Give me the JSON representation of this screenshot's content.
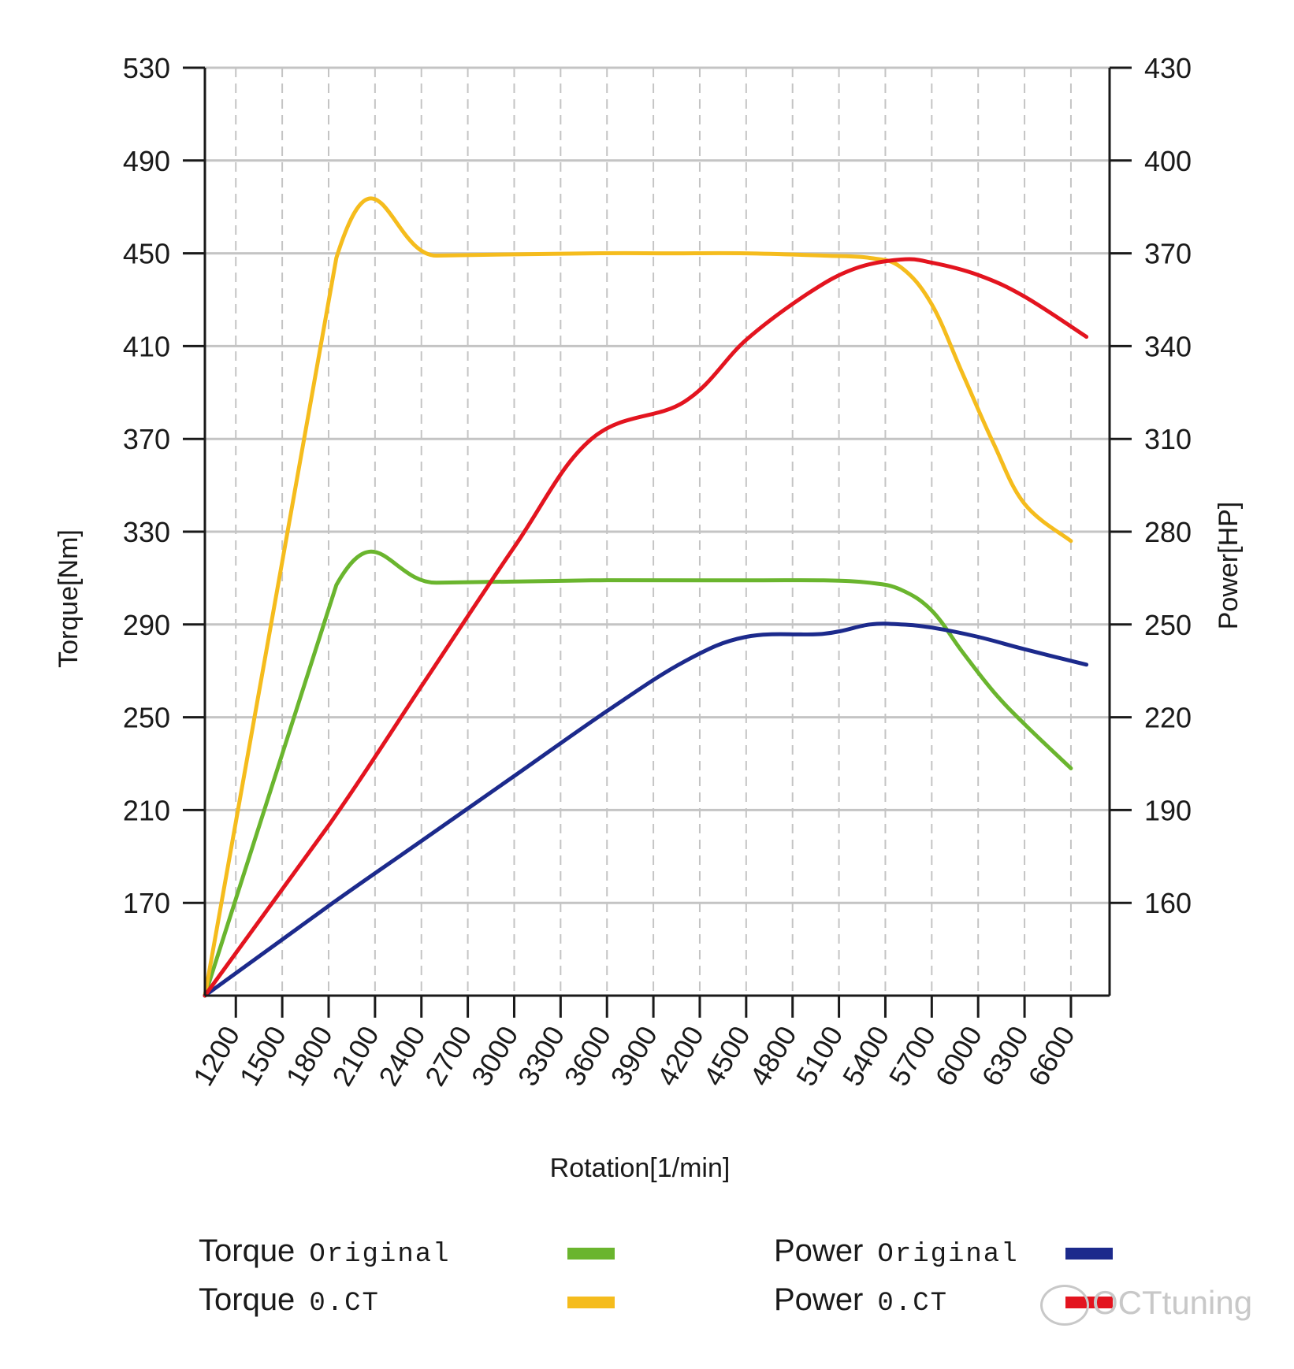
{
  "chart_data": {
    "type": "line",
    "title": "",
    "xlabel": "Rotation[1/min]",
    "ylabel_left": "Torque[Nm]",
    "ylabel_right": "Power[HP]",
    "x_ticks": [
      1200,
      1500,
      1800,
      2100,
      2400,
      2700,
      3000,
      3300,
      3600,
      3900,
      4200,
      4500,
      4800,
      5100,
      5400,
      5700,
      6000,
      6300,
      6600
    ],
    "xlim": [
      1000,
      6850
    ],
    "ylim_left": [
      130,
      530
    ],
    "ylim_right": [
      130,
      430
    ],
    "y_ticks_left": [
      170,
      210,
      250,
      290,
      330,
      370,
      410,
      450,
      490,
      530
    ],
    "y_ticks_right": [
      160,
      190,
      220,
      250,
      280,
      310,
      340,
      370,
      400,
      430
    ],
    "grid": true,
    "series": [
      {
        "name": "Torque Original",
        "axis": "left",
        "color": "#6ab52e",
        "x": [
          1000,
          1850,
          2500,
          3500,
          4500,
          5000,
          5300,
          5500,
          5700,
          5900,
          6100,
          6300,
          6600
        ],
        "y": [
          130,
          307,
          308,
          309,
          309,
          309,
          308,
          305,
          296,
          278,
          261,
          247,
          228
        ]
      },
      {
        "name": "Torque 0.CT",
        "axis": "left",
        "color": "#f5bc1d",
        "x": [
          1000,
          1850,
          2500,
          3500,
          4000,
          4500,
          5000,
          5300,
          5500,
          5700,
          5900,
          6100,
          6300,
          6600
        ],
        "y": [
          130,
          448,
          449,
          450,
          450,
          450,
          449,
          448,
          444,
          428,
          398,
          368,
          342,
          326
        ]
      },
      {
        "name": "Power Original",
        "axis": "right",
        "color": "#1c2a8c",
        "x": [
          1000,
          1800,
          2400,
          3000,
          3600,
          4100,
          4500,
          5000,
          5300,
          5500,
          5700,
          6000,
          6300,
          6700
        ],
        "y": [
          130,
          159,
          180,
          201,
          222,
          238,
          246,
          247,
          250,
          250,
          249,
          246,
          242,
          237
        ]
      },
      {
        "name": "Power 0.CT",
        "axis": "right",
        "color": "#e3141f",
        "x": [
          1000,
          1800,
          2400,
          3000,
          3500,
          4100,
          4500,
          4900,
          5200,
          5500,
          5700,
          6000,
          6300,
          6700
        ],
        "y": [
          130,
          185,
          230,
          275,
          310,
          322,
          342,
          357,
          365,
          368,
          367,
          363,
          356,
          343
        ]
      }
    ],
    "legend": {
      "position": "bottom",
      "items": [
        {
          "main": "Torque",
          "sub": "Original",
          "color": "#6ab52e"
        },
        {
          "main": "Torque",
          "sub": "0.CT",
          "color": "#f5bc1d"
        },
        {
          "main": "Power",
          "sub": "Original",
          "color": "#1c2a8c"
        },
        {
          "main": "Power",
          "sub": "0.CT",
          "color": "#e3141f"
        }
      ]
    }
  },
  "watermark": {
    "text": "OCTtuning"
  }
}
